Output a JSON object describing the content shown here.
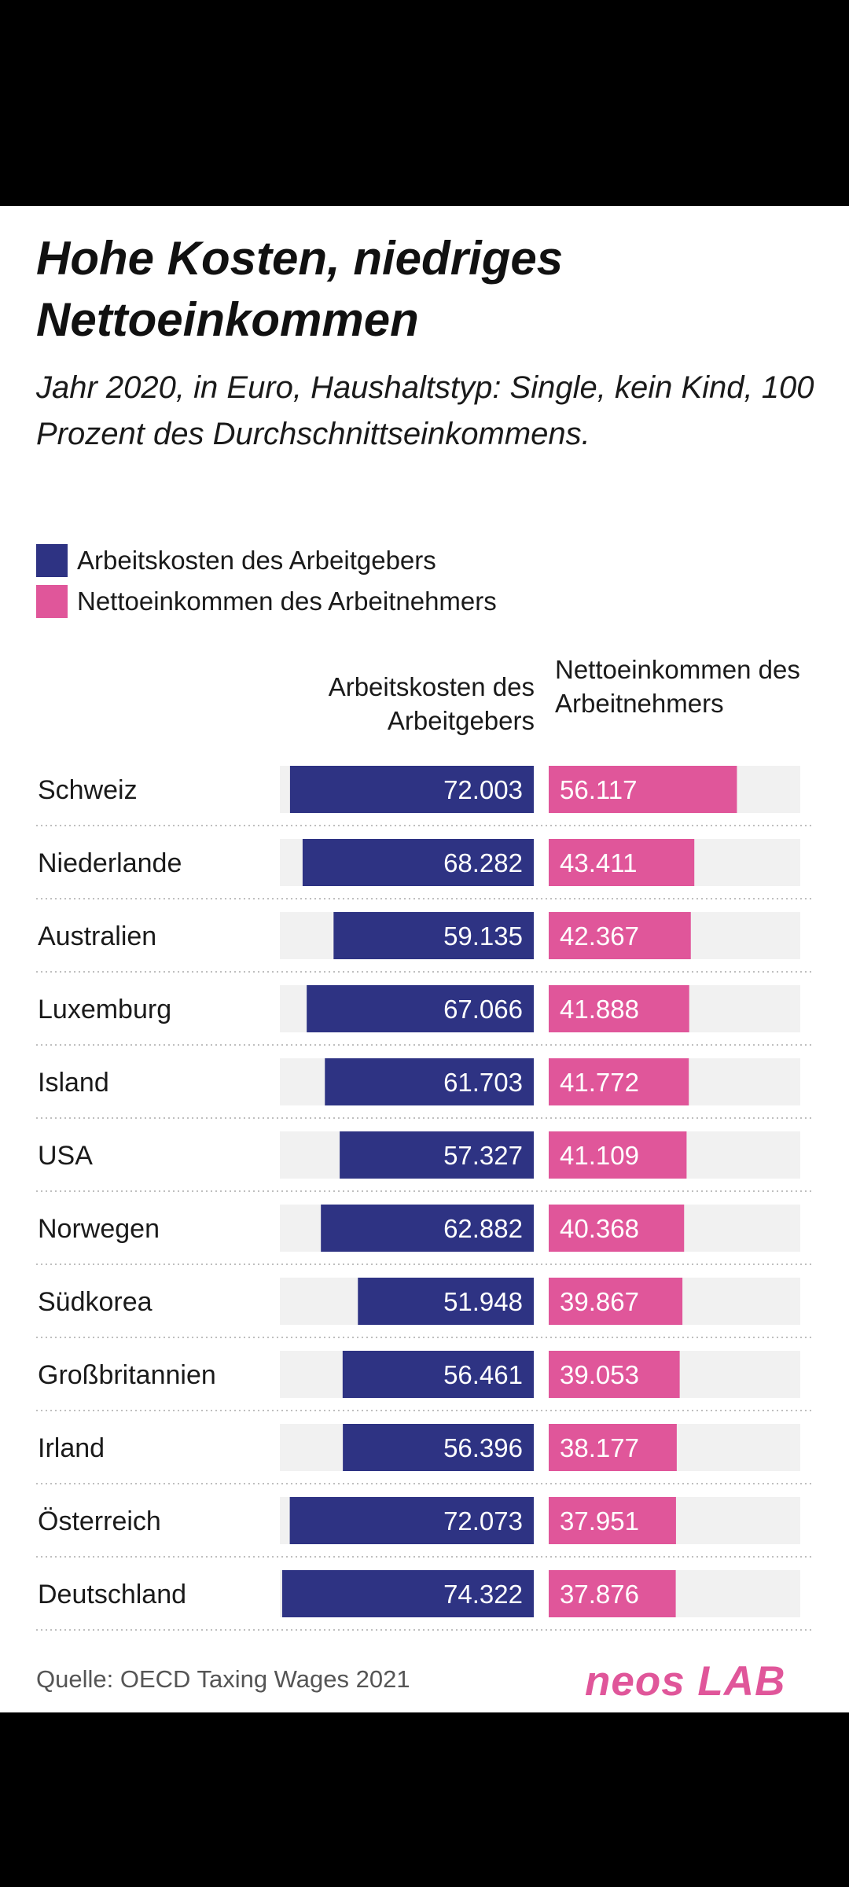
{
  "chart_data": {
    "type": "bar",
    "title": "Hohe Kosten, niedriges Nettoeinkommen",
    "subtitle": "Jahr 2020, in Euro, Haushaltstyp: Single, kein Kind, 100 Prozent des Durchschnittseinkommens.",
    "categories": [
      "Schweiz",
      "Niederlande",
      "Australien",
      "Luxemburg",
      "Island",
      "USA",
      "Norwegen",
      "Südkorea",
      "Großbritannien",
      "Irland",
      "Österreich",
      "Deutschland"
    ],
    "series": [
      {
        "name": "Arbeitskosten des Arbeitgebers",
        "column_header": "Arbeitskosten des Arbeitgebers",
        "color": "#2e3383",
        "values": [
          72003,
          68282,
          59135,
          67066,
          61703,
          57327,
          62882,
          51948,
          56461,
          56396,
          72073,
          74322
        ],
        "labels": [
          "72.003",
          "68.282",
          "59.135",
          "67.066",
          "61.703",
          "57.327",
          "62.882",
          "51.948",
          "56.461",
          "56.396",
          "72.073",
          "74.322"
        ]
      },
      {
        "name": "Nettoeinkommen des Arbeitnehmers",
        "column_header": "Nettoeinkommen des Arbeitnehmers",
        "color": "#e0569a",
        "values": [
          56117,
          43411,
          42367,
          41888,
          41772,
          41109,
          40368,
          39867,
          39053,
          38177,
          37951,
          37876
        ],
        "labels": [
          "56.117",
          "43.411",
          "42.367",
          "41.888",
          "41.772",
          "41.109",
          "40.368",
          "39.867",
          "39.053",
          "38.177",
          "37.951",
          "37.876"
        ]
      }
    ],
    "source": "Quelle: OECD Taxing Wages 2021",
    "brand": "neos LAB",
    "track_color": "#f1f1f1"
  }
}
